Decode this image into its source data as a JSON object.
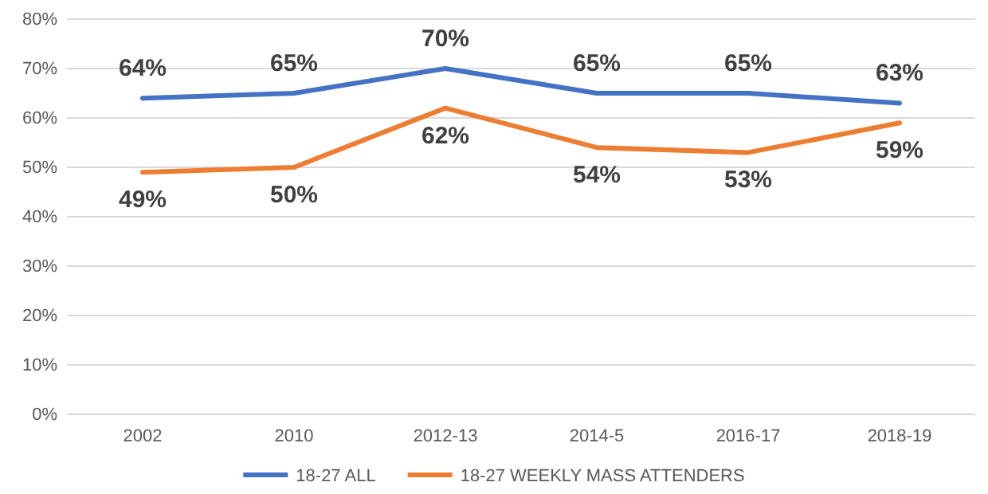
{
  "chart_data": {
    "type": "line",
    "categories": [
      "2002",
      "2010",
      "2012-13",
      "2014-5",
      "2016-17",
      "2018-19"
    ],
    "series": [
      {
        "name": "18-27 ALL",
        "color": "#4472c4",
        "values": [
          64,
          65,
          70,
          65,
          65,
          63
        ],
        "value_labels": [
          "64%",
          "65%",
          "70%",
          "65%",
          "65%",
          "63%"
        ]
      },
      {
        "name": "18-27 WEEKLY MASS ATTENDERS",
        "color": "#ed7d31",
        "values": [
          49,
          50,
          62,
          54,
          53,
          59
        ],
        "value_labels": [
          "49%",
          "50%",
          "62%",
          "54%",
          "53%",
          "59%"
        ]
      }
    ],
    "ylim": [
      0,
      80
    ],
    "yticks": [
      {
        "value": 0,
        "label": "0%"
      },
      {
        "value": 10,
        "label": "10%"
      },
      {
        "value": 20,
        "label": "20%"
      },
      {
        "value": 30,
        "label": "30%"
      },
      {
        "value": 40,
        "label": "40%"
      },
      {
        "value": 50,
        "label": "50%"
      },
      {
        "value": 60,
        "label": "60%"
      },
      {
        "value": 70,
        "label": "70%"
      },
      {
        "value": 80,
        "label": "80%"
      }
    ],
    "grid": "y",
    "legend": "bottom",
    "marker": "none",
    "line_style": "solid"
  }
}
